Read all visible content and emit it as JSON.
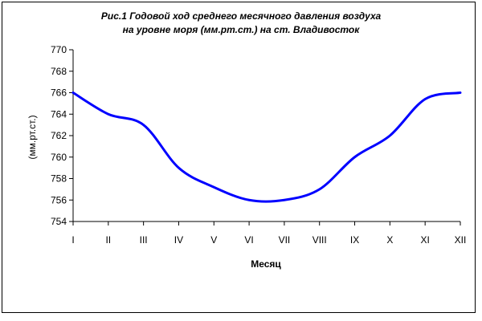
{
  "chart_data": {
    "type": "line",
    "title_line1": "Рис.1  Годовой ход среднего месячного давления воздуха",
    "title_line2": "на уровне моря (мм.рт.ст.) на ст. Владивосток",
    "xlabel": "Месяц",
    "ylabel": "(мм.рт.ст.)",
    "categories": [
      "I",
      "II",
      "III",
      "IV",
      "V",
      "VI",
      "VII",
      "VIII",
      "IX",
      "X",
      "XI",
      "XII"
    ],
    "ylim": [
      754,
      770
    ],
    "yticks": [
      754,
      756,
      758,
      760,
      762,
      764,
      766,
      768,
      770
    ],
    "series": [
      {
        "values": [
          766.0,
          764.0,
          763.0,
          759.0,
          757.2,
          756.0,
          756.0,
          757.0,
          760.0,
          762.0,
          765.4,
          766.0
        ]
      }
    ],
    "line_color": "#0000ff",
    "grid": false,
    "legend": "none"
  }
}
